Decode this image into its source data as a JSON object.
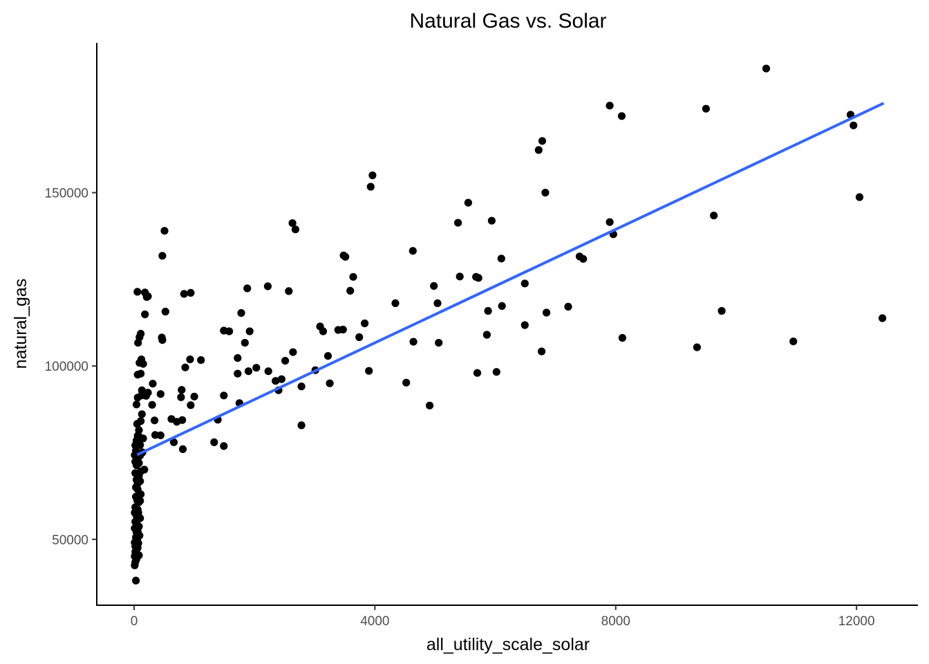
{
  "chart_data": {
    "type": "scatter",
    "title": "Natural Gas vs. Solar",
    "xlabel": "all_utility_scale_solar",
    "ylabel": "natural_gas",
    "xlim": [
      -620,
      13020
    ],
    "ylim": [
      31000,
      193200
    ],
    "x_ticks": [
      0,
      4000,
      8000,
      12000
    ],
    "x_tick_labels": [
      "0",
      "4000",
      "8000",
      "12000"
    ],
    "y_ticks": [
      50000,
      100000,
      150000
    ],
    "y_tick_labels": [
      "50000",
      "100000",
      "150000"
    ],
    "grid": false,
    "legend": "none",
    "colors": {
      "points": "#000000",
      "trend": "#3366ff",
      "axis": "#000000",
      "tick_text": "#4d4d4d"
    },
    "trendline": {
      "type": "linear",
      "x": [
        50,
        12450
      ],
      "y": [
        74400,
        175800
      ]
    },
    "points": [
      [
        10500,
        185800
      ],
      [
        7900,
        175100
      ],
      [
        9500,
        174200
      ],
      [
        8100,
        172100
      ],
      [
        11900,
        172500
      ],
      [
        11950,
        169400
      ],
      [
        6780,
        164900
      ],
      [
        6720,
        162300
      ],
      [
        3960,
        155000
      ],
      [
        3930,
        151700
      ],
      [
        6830,
        150000
      ],
      [
        5550,
        147100
      ],
      [
        12050,
        148700
      ],
      [
        9630,
        143400
      ],
      [
        2630,
        141200
      ],
      [
        2680,
        139400
      ],
      [
        5380,
        141300
      ],
      [
        5940,
        141900
      ],
      [
        7900,
        141500
      ],
      [
        7960,
        138000
      ],
      [
        505,
        139000
      ],
      [
        470,
        131800
      ],
      [
        4630,
        133200
      ],
      [
        3480,
        131900
      ],
      [
        3510,
        131500
      ],
      [
        6100,
        131000
      ],
      [
        7400,
        131600
      ],
      [
        7460,
        130900
      ],
      [
        3640,
        125700
      ],
      [
        5410,
        125800
      ],
      [
        5680,
        125700
      ],
      [
        5720,
        125400
      ],
      [
        4980,
        123100
      ],
      [
        6490,
        123800
      ],
      [
        2220,
        123000
      ],
      [
        1880,
        122400
      ],
      [
        2570,
        121600
      ],
      [
        3590,
        121700
      ],
      [
        830,
        120800
      ],
      [
        940,
        121100
      ],
      [
        55,
        121400
      ],
      [
        180,
        121200
      ],
      [
        210,
        119900
      ],
      [
        230,
        120100
      ],
      [
        4340,
        118100
      ],
      [
        5040,
        118100
      ],
      [
        6110,
        117300
      ],
      [
        7210,
        117100
      ],
      [
        5880,
        115900
      ],
      [
        6850,
        115400
      ],
      [
        9760,
        115900
      ],
      [
        12430,
        113800
      ],
      [
        180,
        114900
      ],
      [
        520,
        115700
      ],
      [
        1780,
        115300
      ],
      [
        3830,
        112300
      ],
      [
        6490,
        111800
      ],
      [
        3090,
        111400
      ],
      [
        3140,
        110000
      ],
      [
        3390,
        110400
      ],
      [
        3470,
        110500
      ],
      [
        1490,
        110200
      ],
      [
        1580,
        110000
      ],
      [
        1920,
        110000
      ],
      [
        90,
        108300
      ],
      [
        110,
        109300
      ],
      [
        3740,
        108300
      ],
      [
        5860,
        109000
      ],
      [
        8110,
        108100
      ],
      [
        4640,
        107000
      ],
      [
        5060,
        106700
      ],
      [
        10950,
        107100
      ],
      [
        9350,
        105400
      ],
      [
        65,
        106700
      ],
      [
        460,
        108200
      ],
      [
        470,
        107500
      ],
      [
        1840,
        106700
      ],
      [
        2640,
        104000
      ],
      [
        6770,
        104200
      ],
      [
        2510,
        101500
      ],
      [
        3220,
        102900
      ],
      [
        1110,
        101700
      ],
      [
        930,
        101900
      ],
      [
        850,
        99600
      ],
      [
        1720,
        102300
      ],
      [
        2030,
        99500
      ],
      [
        2230,
        98500
      ],
      [
        1900,
        98500
      ],
      [
        1720,
        97800
      ],
      [
        3010,
        98800
      ],
      [
        3900,
        98600
      ],
      [
        5700,
        98000
      ],
      [
        6020,
        98300
      ],
      [
        90,
        100900
      ],
      [
        120,
        101900
      ],
      [
        60,
        97500
      ],
      [
        110,
        97800
      ],
      [
        150,
        100600
      ],
      [
        2350,
        95700
      ],
      [
        2450,
        96200
      ],
      [
        3250,
        95000
      ],
      [
        2400,
        93000
      ],
      [
        2780,
        94100
      ],
      [
        4520,
        95200
      ],
      [
        310,
        94900
      ],
      [
        790,
        93100
      ],
      [
        780,
        91000
      ],
      [
        1000,
        91200
      ],
      [
        1490,
        91500
      ],
      [
        440,
        91900
      ],
      [
        230,
        92300
      ],
      [
        200,
        91400
      ],
      [
        130,
        93000
      ],
      [
        120,
        91500
      ],
      [
        60,
        90900
      ],
      [
        40,
        88900
      ],
      [
        300,
        88800
      ],
      [
        940,
        88700
      ],
      [
        1750,
        89300
      ],
      [
        4910,
        88600
      ],
      [
        340,
        84300
      ],
      [
        620,
        84700
      ],
      [
        710,
        83900
      ],
      [
        800,
        84400
      ],
      [
        1390,
        84500
      ],
      [
        2780,
        82900
      ],
      [
        110,
        84100
      ],
      [
        130,
        86100
      ],
      [
        50,
        83300
      ],
      [
        80,
        81500
      ],
      [
        350,
        80100
      ],
      [
        440,
        80000
      ],
      [
        660,
        78000
      ],
      [
        1330,
        78000
      ],
      [
        1490,
        76900
      ],
      [
        810,
        76000
      ],
      [
        40,
        78500
      ],
      [
        60,
        79900
      ],
      [
        80,
        79700
      ],
      [
        150,
        79100
      ],
      [
        100,
        77200
      ],
      [
        20,
        77100
      ],
      [
        30,
        75600
      ],
      [
        10,
        74300
      ],
      [
        20,
        72400
      ],
      [
        40,
        71400
      ],
      [
        60,
        73300
      ],
      [
        80,
        72000
      ],
      [
        100,
        74200
      ],
      [
        140,
        75100
      ],
      [
        170,
        70100
      ],
      [
        110,
        69600
      ],
      [
        20,
        69100
      ],
      [
        40,
        67200
      ],
      [
        60,
        66100
      ],
      [
        80,
        68300
      ],
      [
        100,
        66800
      ],
      [
        30,
        65000
      ],
      [
        60,
        64400
      ],
      [
        110,
        63000
      ],
      [
        30,
        62300
      ],
      [
        50,
        61300
      ],
      [
        80,
        60700
      ],
      [
        100,
        61100
      ],
      [
        20,
        59300
      ],
      [
        60,
        58600
      ],
      [
        10,
        57700
      ],
      [
        40,
        56800
      ],
      [
        70,
        57700
      ],
      [
        100,
        56100
      ],
      [
        20,
        55100
      ],
      [
        50,
        54300
      ],
      [
        80,
        53700
      ],
      [
        10,
        53200
      ],
      [
        40,
        52100
      ],
      [
        60,
        52300
      ],
      [
        90,
        51100
      ],
      [
        30,
        50600
      ],
      [
        50,
        49800
      ],
      [
        10,
        49100
      ],
      [
        70,
        48900
      ],
      [
        20,
        48000
      ],
      [
        40,
        47100
      ],
      [
        60,
        47600
      ],
      [
        20,
        46400
      ],
      [
        50,
        45800
      ],
      [
        10,
        45100
      ],
      [
        40,
        44300
      ],
      [
        80,
        45400
      ],
      [
        20,
        43400
      ],
      [
        10,
        42500
      ],
      [
        30,
        38100
      ]
    ]
  }
}
